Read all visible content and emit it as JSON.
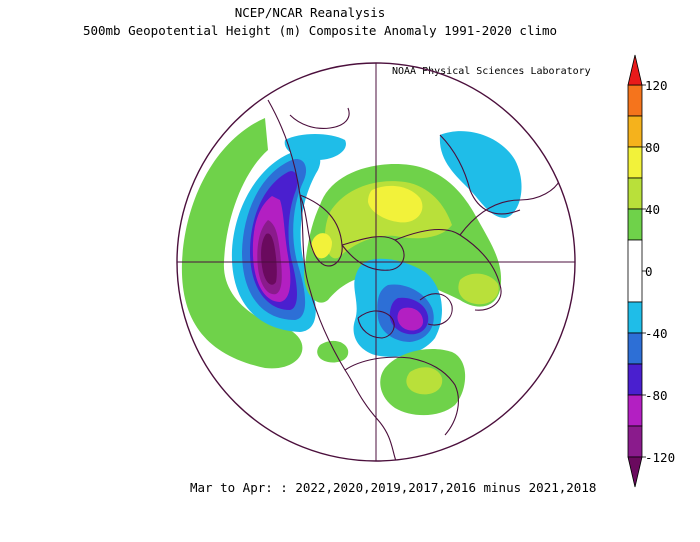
{
  "header": {
    "line1": "NCEP/NCAR Reanalysis",
    "line2": "500mb Geopotential Height (m) Composite Anomaly 1991-2020 climo",
    "credit": "NOAA Physical Sciences Laboratory"
  },
  "footer": {
    "period": "Mar to Apr: : 2022,2020,2019,2017,2016 minus 2021,2018"
  },
  "colorbar": {
    "labels": [
      "120",
      "80",
      "40",
      "0",
      "-40",
      "-80",
      "-120"
    ],
    "colors": {
      "le_-120": "#6a0a5e",
      "-120_-100": "#8a1b8c",
      "-100_-80": "#b31fc2",
      "-80_-60": "#4a1fcf",
      "-60_-40": "#2d6fd6",
      "-40_-20": "#1fbde8",
      "-20_20": "#ffffff",
      "20_40": "#6fd24a",
      "40_60": "#b9e03a",
      "60_80": "#f2f23a",
      "80_100": "#f5b21c",
      "100_120": "#f5741c",
      "ge_120": "#e81a1a"
    }
  },
  "map": {
    "projection": "north polar stereographic",
    "field": "500mb geopotential height anomaly (m)",
    "line_color": "#4b0f3c"
  }
}
